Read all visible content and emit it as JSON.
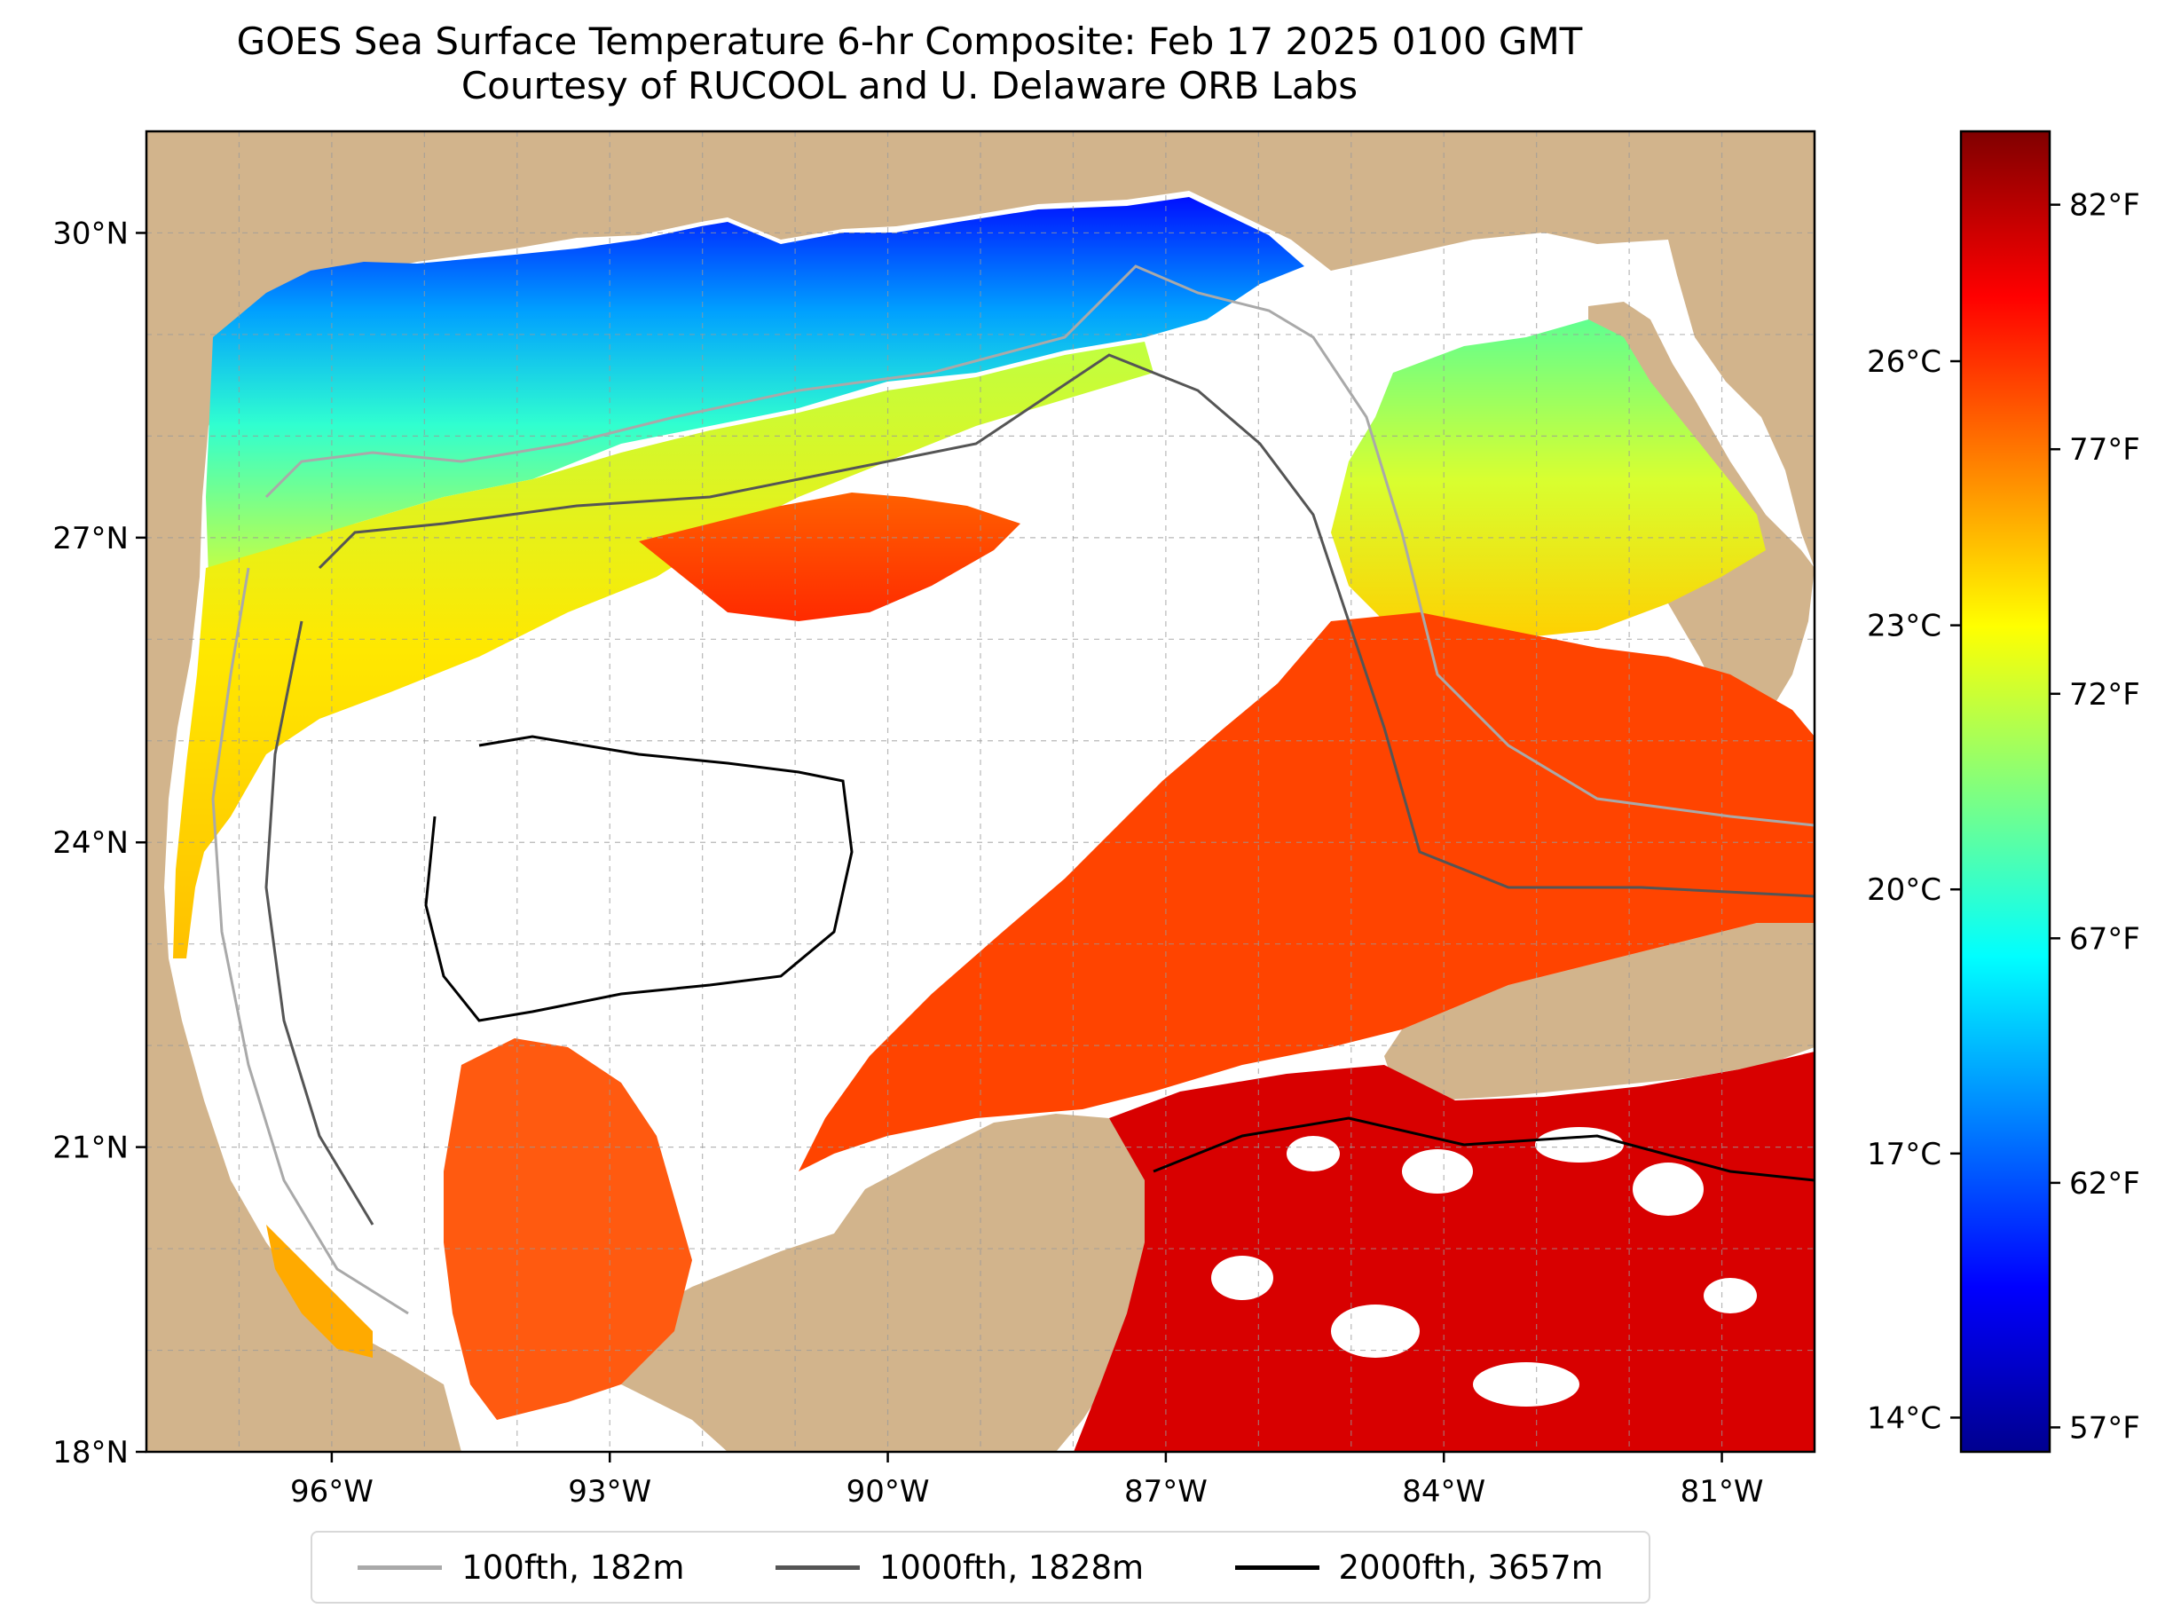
{
  "title": {
    "line1": "GOES Sea Surface Temperature 6-hr Composite: Feb 17 2025 0100 GMT",
    "line2": "Courtesy of RUCOOL and U. Delaware ORB Labs"
  },
  "map": {
    "lon_range": [
      -98.0,
      -80.0
    ],
    "lat_range": [
      18.0,
      31.0
    ],
    "grid": true,
    "lon_ticks": [
      {
        "value": -96,
        "label": "96°W"
      },
      {
        "value": -93,
        "label": "93°W"
      },
      {
        "value": -90,
        "label": "90°W"
      },
      {
        "value": -87,
        "label": "87°W"
      },
      {
        "value": -84,
        "label": "84°W"
      },
      {
        "value": -81,
        "label": "81°W"
      }
    ],
    "lat_ticks": [
      {
        "value": 18,
        "label": "18°N"
      },
      {
        "value": 21,
        "label": "21°N"
      },
      {
        "value": 24,
        "label": "24°N"
      },
      {
        "value": 27,
        "label": "27°N"
      },
      {
        "value": 30,
        "label": "30°N"
      }
    ],
    "land_color": "#d2b48c",
    "water_color": "#8fb4e0",
    "nodata_color": "#ffffff"
  },
  "colorbar": {
    "colormap": "jet",
    "range_f": [
      56.5,
      83.5
    ],
    "fahrenheit_ticks": [
      {
        "value": 57,
        "label": "57°F"
      },
      {
        "value": 62,
        "label": "62°F"
      },
      {
        "value": 67,
        "label": "67°F"
      },
      {
        "value": 72,
        "label": "72°F"
      },
      {
        "value": 77,
        "label": "77°F"
      },
      {
        "value": 82,
        "label": "82°F"
      }
    ],
    "celsius_ticks": [
      {
        "value": 14,
        "label": "14°C"
      },
      {
        "value": 17,
        "label": "17°C"
      },
      {
        "value": 20,
        "label": "20°C"
      },
      {
        "value": 23,
        "label": "23°C"
      },
      {
        "value": 26,
        "label": "26°C"
      }
    ]
  },
  "legend": [
    {
      "label": "100fth, 182m",
      "color": "#a9a9a9"
    },
    {
      "label": "1000fth, 1828m",
      "color": "#555555"
    },
    {
      "label": "2000fth, 3657m",
      "color": "#000000"
    }
  ]
}
